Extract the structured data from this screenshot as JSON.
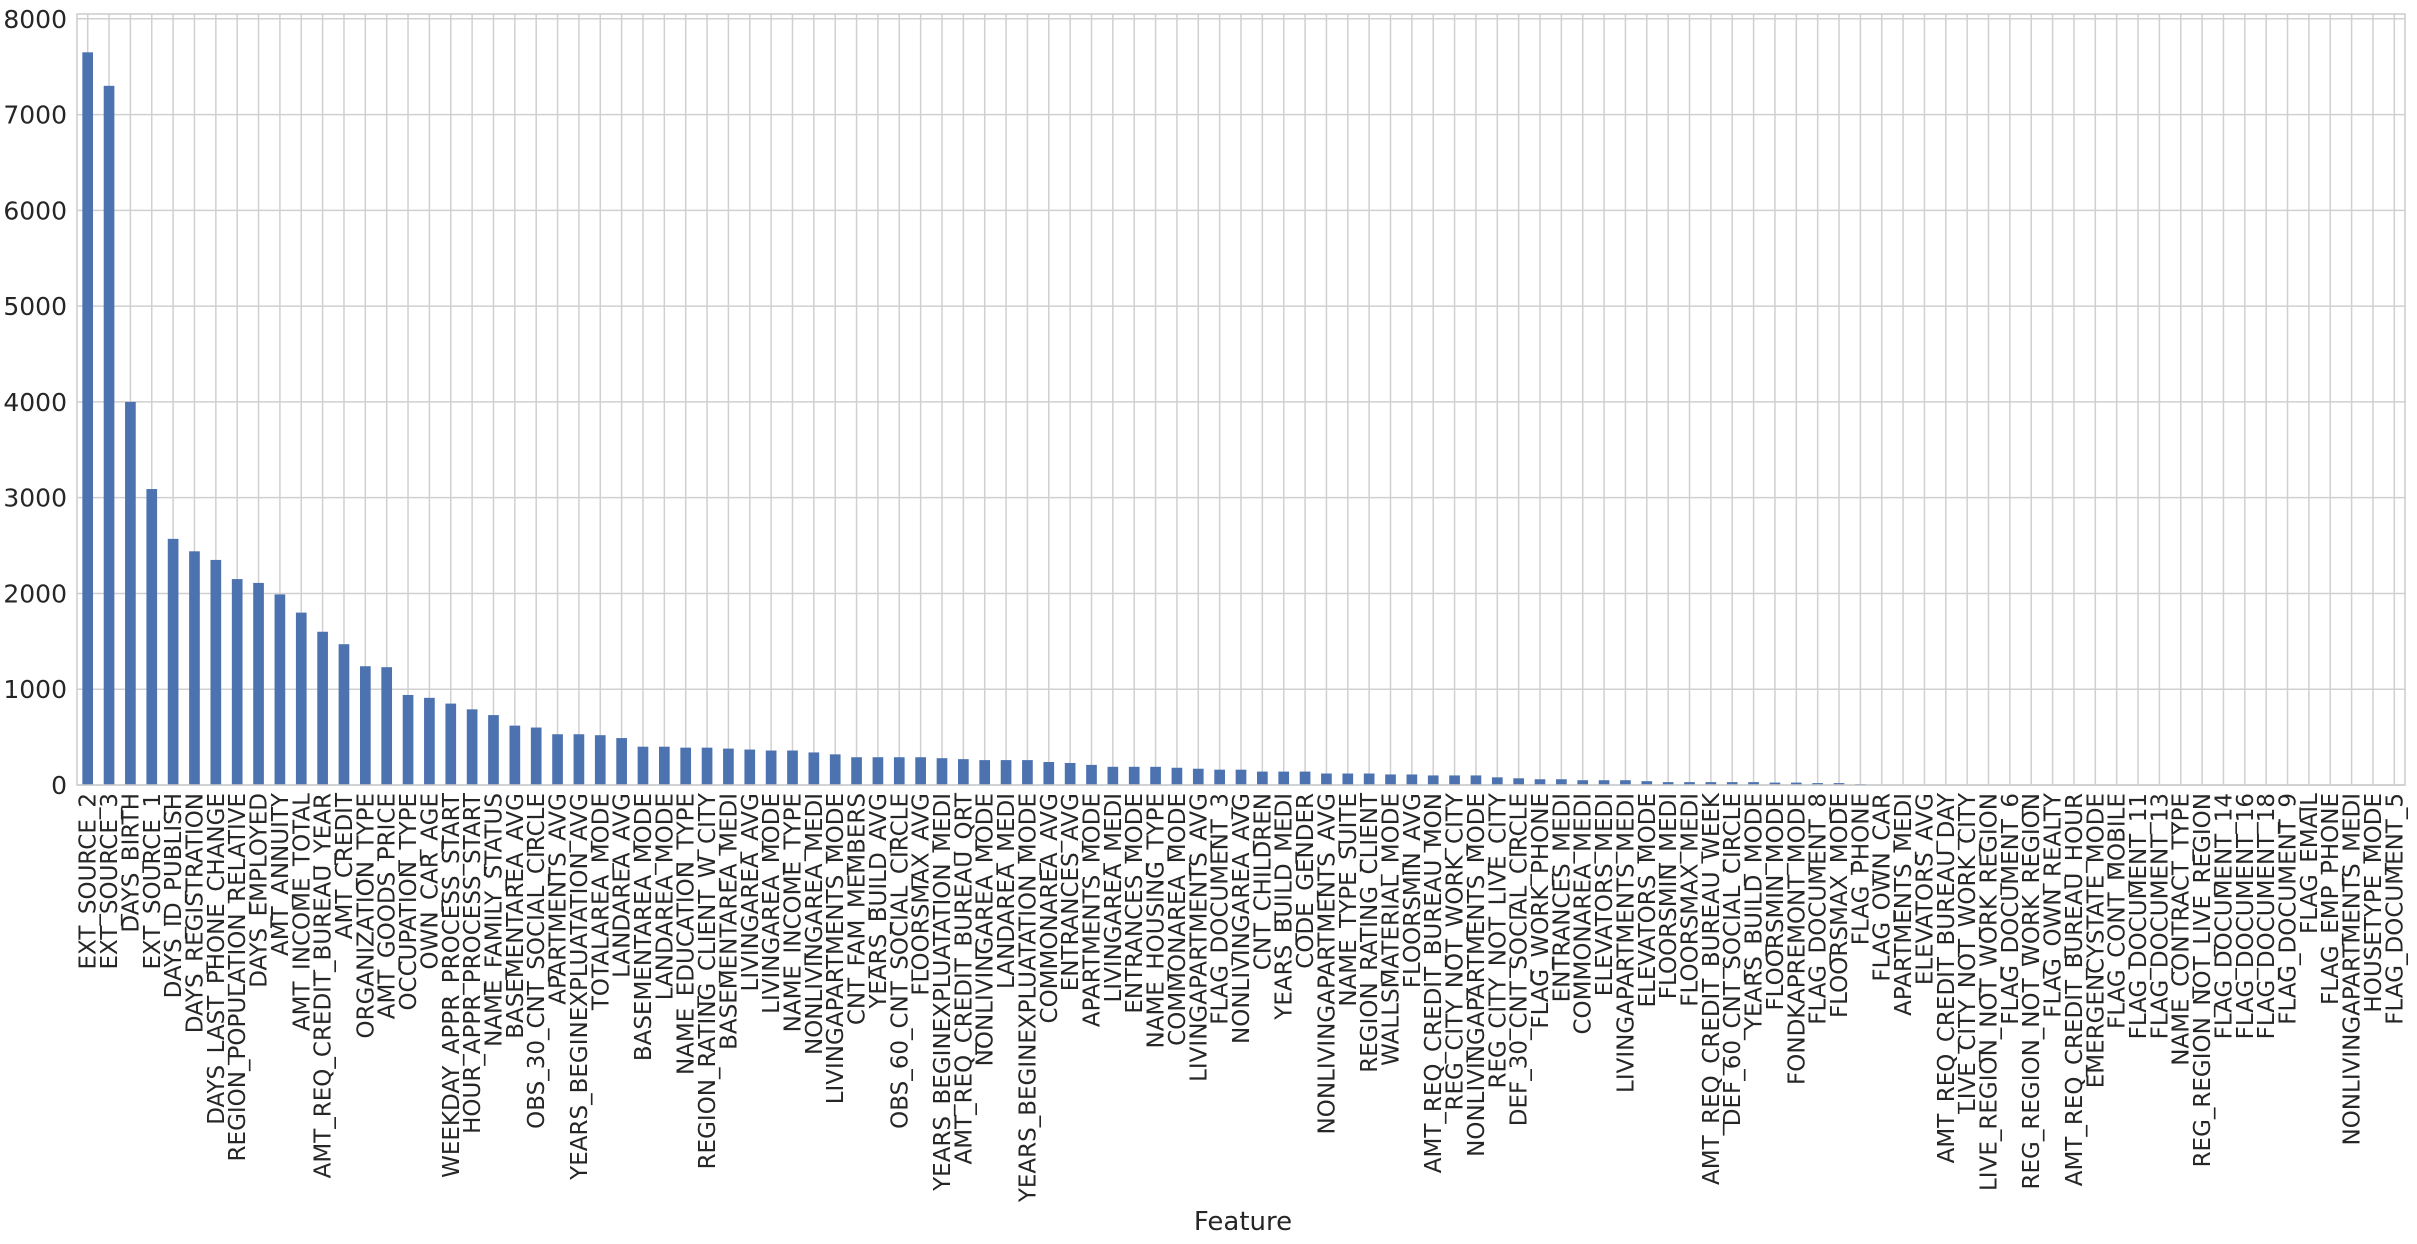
{
  "chart_data": {
    "type": "bar",
    "xlabel": "Feature",
    "categories": [
      "EXT_SOURCE_2",
      "EXT_SOURCE_3",
      "DAYS_BIRTH",
      "EXT_SOURCE_1",
      "DAYS_ID_PUBLISH",
      "DAYS_REGISTRATION",
      "DAYS_LAST_PHONE_CHANGE",
      "REGION_POPULATION_RELATIVE",
      "DAYS_EMPLOYED",
      "AMT_ANNUITY",
      "AMT_INCOME_TOTAL",
      "AMT_REQ_CREDIT_BUREAU_YEAR",
      "AMT_CREDIT",
      "ORGANIZATION_TYPE",
      "AMT_GOODS_PRICE",
      "OCCUPATION_TYPE",
      "OWN_CAR_AGE",
      "WEEKDAY_APPR_PROCESS_START",
      "HOUR_APPR_PROCESS_START",
      "NAME_FAMILY_STATUS",
      "BASEMENTAREA_AVG",
      "OBS_30_CNT_SOCIAL_CIRCLE",
      "APARTMENTS_AVG",
      "YEARS_BEGINEXPLUATATION_AVG",
      "TOTALAREA_MODE",
      "LANDAREA_AVG",
      "BASEMENTAREA_MODE",
      "LANDAREA_MODE",
      "NAME_EDUCATION_TYPE",
      "REGION_RATING_CLIENT_W_CITY",
      "BASEMENTAREA_MEDI",
      "LIVINGAREA_AVG",
      "LIVINGAREA_MODE",
      "NAME_INCOME_TYPE",
      "NONLIVINGAREA_MEDI",
      "LIVINGAPARTMENTS_MODE",
      "CNT_FAM_MEMBERS",
      "YEARS_BUILD_AVG",
      "OBS_60_CNT_SOCIAL_CIRCLE",
      "FLOORSMAX_AVG",
      "YEARS_BEGINEXPLUATATION_MEDI",
      "AMT_REQ_CREDIT_BUREAU_QRT",
      "NONLIVINGAREA_MODE",
      "LANDAREA_MEDI",
      "YEARS_BEGINEXPLUATATION_MODE",
      "COMMONAREA_AVG",
      "ENTRANCES_AVG",
      "APARTMENTS_MODE",
      "LIVINGAREA_MEDI",
      "ENTRANCES_MODE",
      "NAME_HOUSING_TYPE",
      "COMMONAREA_MODE",
      "LIVINGAPARTMENTS_AVG",
      "FLAG_DOCUMENT_3",
      "NONLIVINGAREA_AVG",
      "CNT_CHILDREN",
      "YEARS_BUILD_MEDI",
      "CODE_GENDER",
      "NONLIVINGAPARTMENTS_AVG",
      "NAME_TYPE_SUITE",
      "REGION_RATING_CLIENT",
      "WALLSMATERIAL_MODE",
      "FLOORSMIN_AVG",
      "AMT_REQ_CREDIT_BUREAU_MON",
      "REG_CITY_NOT_WORK_CITY",
      "NONLIVINGAPARTMENTS_MODE",
      "REG_CITY_NOT_LIVE_CITY",
      "DEF_30_CNT_SOCIAL_CIRCLE",
      "FLAG_WORK_PHONE",
      "ENTRANCES_MEDI",
      "COMMONAREA_MEDI",
      "ELEVATORS_MEDI",
      "LIVINGAPARTMENTS_MEDI",
      "ELEVATORS_MODE",
      "FLOORSMIN_MEDI",
      "FLOORSMAX_MEDI",
      "AMT_REQ_CREDIT_BUREAU_WEEK",
      "DEF_60_CNT_SOCIAL_CIRCLE",
      "YEARS_BUILD_MODE",
      "FLOORSMIN_MODE",
      "FONDKAPREMONT_MODE",
      "FLAG_DOCUMENT_8",
      "FLOORSMAX_MODE",
      "FLAG_PHONE",
      "FLAG_OWN_CAR",
      "APARTMENTS_MEDI",
      "ELEVATORS_AVG",
      "AMT_REQ_CREDIT_BUREAU_DAY",
      "LIVE_CITY_NOT_WORK_CITY",
      "LIVE_REGION_NOT_WORK_REGION",
      "FLAG_DOCUMENT_6",
      "REG_REGION_NOT_WORK_REGION",
      "FLAG_OWN_REALTY",
      "AMT_REQ_CREDIT_BUREAU_HOUR",
      "EMERGENCYSTATE_MODE",
      "FLAG_CONT_MOBILE",
      "FLAG_DOCUMENT_11",
      "FLAG_DOCUMENT_13",
      "NAME_CONTRACT_TYPE",
      "REG_REGION_NOT_LIVE_REGION",
      "FLAG_DOCUMENT_14",
      "FLAG_DOCUMENT_16",
      "FLAG_DOCUMENT_18",
      "FLAG_DOCUMENT_9",
      "FLAG_EMAIL",
      "FLAG_EMP_PHONE",
      "NONLIVINGAPARTMENTS_MEDI",
      "HOUSETYPE_MODE",
      "FLAG_DOCUMENT_5"
    ],
    "values": [
      7650,
      7300,
      4000,
      3090,
      2570,
      2440,
      2350,
      2150,
      2110,
      1990,
      1800,
      1600,
      1470,
      1240,
      1230,
      940,
      910,
      850,
      790,
      730,
      620,
      600,
      530,
      530,
      520,
      490,
      400,
      400,
      390,
      390,
      380,
      370,
      360,
      360,
      340,
      320,
      290,
      290,
      290,
      290,
      280,
      270,
      260,
      260,
      260,
      240,
      230,
      210,
      190,
      190,
      190,
      180,
      170,
      160,
      160,
      140,
      140,
      140,
      120,
      120,
      120,
      110,
      110,
      100,
      100,
      100,
      80,
      70,
      60,
      60,
      50,
      50,
      50,
      40,
      30,
      30,
      30,
      30,
      30,
      25,
      25,
      20,
      20,
      10,
      5,
      5,
      0,
      0,
      0,
      0,
      0,
      0,
      0,
      0,
      0,
      0,
      0,
      0,
      0,
      0,
      0,
      0,
      0,
      0,
      0,
      0,
      0,
      0,
      0
    ],
    "color": "#4c72b0",
    "ylim": [
      0,
      8050
    ],
    "yticks": [
      0,
      1000,
      2000,
      3000,
      4000,
      5000,
      6000,
      7000,
      8000
    ],
    "grid": true
  }
}
